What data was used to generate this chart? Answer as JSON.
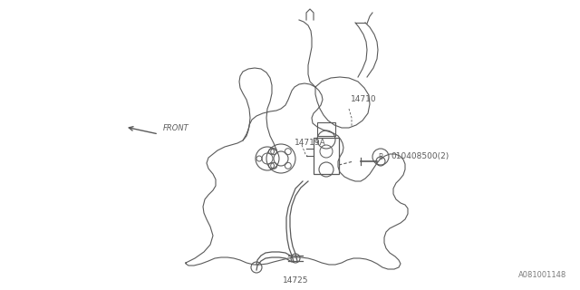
{
  "background_color": "#ffffff",
  "line_color": "#5a5a5a",
  "text_color": "#5a5a5a",
  "fig_width": 6.4,
  "fig_height": 3.2,
  "dpi": 100,
  "labels": {
    "front": "FRONT",
    "part_14710": "14710",
    "part_14719A": "14719A",
    "part_14725": "14725",
    "part_bolt": "010408500(2)",
    "diagram_id": "A081001148"
  }
}
